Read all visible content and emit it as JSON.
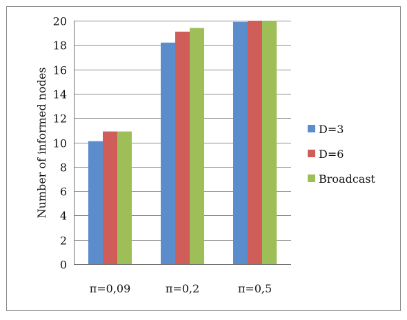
{
  "chart_data": {
    "type": "bar",
    "title": "",
    "xlabel": "",
    "ylabel": "Number of informed nodes",
    "categories": [
      "π=0,09",
      "π=0,2",
      "π=0,5"
    ],
    "series": [
      {
        "name": "D=3",
        "values": [
          10.1,
          18.2,
          19.9
        ],
        "color": "#5b8ccc"
      },
      {
        "name": "D=6",
        "values": [
          10.9,
          19.1,
          20.0
        ],
        "color": "#cf5e5a"
      },
      {
        "name": "Broadcast",
        "values": [
          10.9,
          19.4,
          20.0
        ],
        "color": "#9ebe58"
      }
    ],
    "ylim": [
      0,
      20
    ],
    "yticks": [
      0,
      2,
      4,
      6,
      8,
      10,
      12,
      14,
      16,
      18,
      20
    ],
    "grid": true,
    "legend_position": "right"
  }
}
